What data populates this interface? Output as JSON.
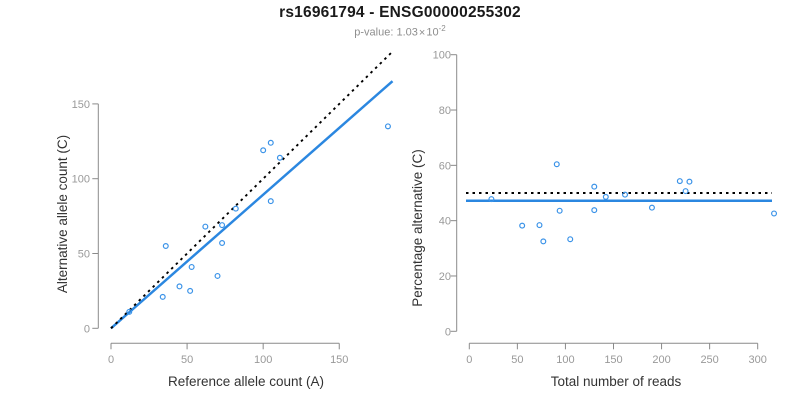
{
  "header": {
    "title": "rs16961794 - ENSG00000255302",
    "subtitle": {
      "prefix": "p-value: 1.03",
      "times": "×",
      "base": "10",
      "exponent": "-2"
    }
  },
  "chart_data": [
    {
      "type": "scatter",
      "xlabel": "Reference allele count (A)",
      "ylabel": "Alternative allele count (C)",
      "xlim": [
        0,
        185
      ],
      "ylim": [
        0,
        185
      ],
      "xticks": [
        0,
        50,
        100,
        150
      ],
      "yticks": [
        0,
        50,
        100,
        150
      ],
      "grid": false,
      "legend": null,
      "point_color": "#3b93e8",
      "points": [
        [
          12,
          11
        ],
        [
          34,
          21
        ],
        [
          36,
          55
        ],
        [
          45,
          28
        ],
        [
          52,
          25
        ],
        [
          53,
          41
        ],
        [
          62,
          68
        ],
        [
          70,
          35
        ],
        [
          73,
          57
        ],
        [
          73,
          69
        ],
        [
          82,
          80
        ],
        [
          100,
          119
        ],
        [
          105,
          124
        ],
        [
          105,
          85
        ],
        [
          111,
          114
        ],
        [
          182,
          135
        ]
      ],
      "lines": [
        {
          "name": "regression-line",
          "slope": 0.893,
          "intercept": 0,
          "style": "solid",
          "color": "#2b87e0"
        },
        {
          "name": "identity-line",
          "slope": 1,
          "intercept": 0,
          "style": "dotted",
          "color": "#000000"
        }
      ]
    },
    {
      "type": "scatter",
      "xlabel": "Total number of reads",
      "ylabel": "Percentage alternative (C)",
      "xlim": [
        0,
        320
      ],
      "ylim": [
        0,
        100
      ],
      "xticks": [
        0,
        50,
        100,
        150,
        200,
        250,
        300
      ],
      "yticks": [
        0,
        20,
        40,
        60,
        80,
        100
      ],
      "grid": false,
      "legend": null,
      "point_color": "#3b93e8",
      "points": [
        [
          23,
          47.8
        ],
        [
          55,
          38.2
        ],
        [
          91,
          60.4
        ],
        [
          73,
          38.4
        ],
        [
          77,
          32.5
        ],
        [
          94,
          43.6
        ],
        [
          130,
          52.3
        ],
        [
          105,
          33.3
        ],
        [
          130,
          43.8
        ],
        [
          142,
          48.6
        ],
        [
          162,
          49.4
        ],
        [
          219,
          54.3
        ],
        [
          229,
          54.1
        ],
        [
          190,
          44.7
        ],
        [
          225,
          50.7
        ],
        [
          317,
          42.6
        ]
      ],
      "hlines": [
        {
          "name": "mean-percentage-line",
          "y": 47.2,
          "style": "solid",
          "color": "#2b87e0"
        },
        {
          "name": "null-50pct-line",
          "y": 50,
          "style": "dotted",
          "color": "#000000"
        }
      ]
    }
  ]
}
